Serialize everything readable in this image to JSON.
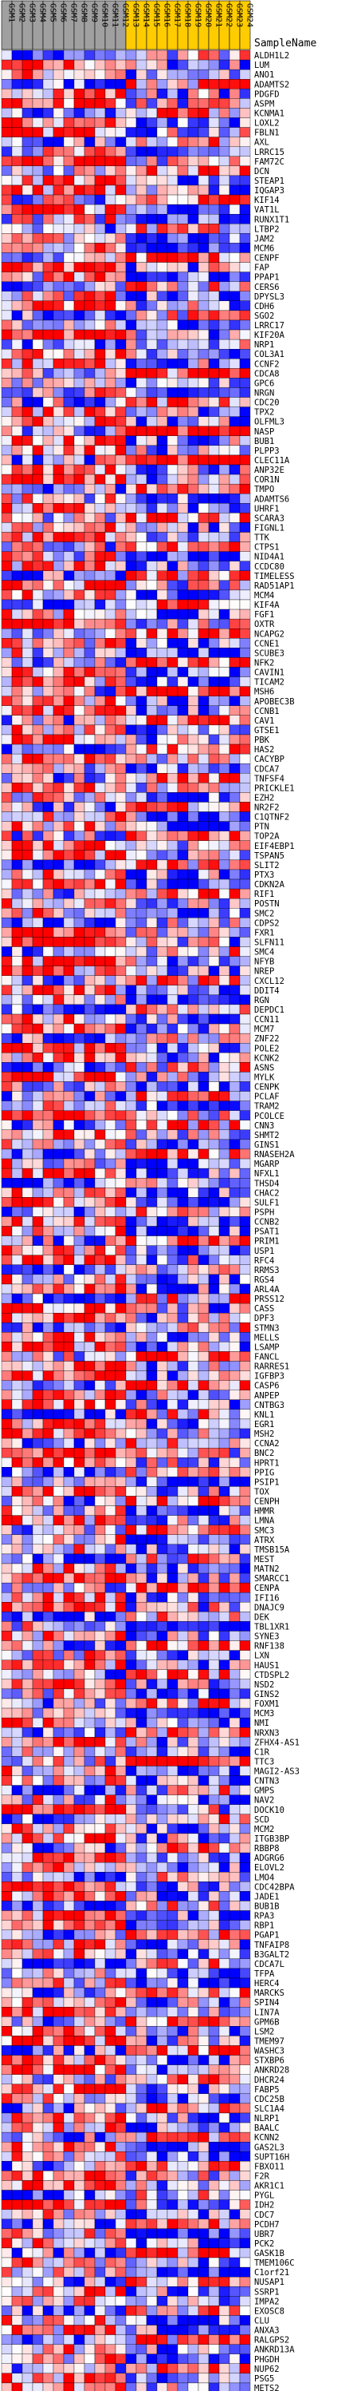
{
  "chart_data": {
    "type": "heatmap",
    "header": "SampleName",
    "columns": [
      "GSM1",
      "GSM2",
      "GSM3",
      "GSM4",
      "GSM5",
      "GSM6",
      "GSM7",
      "GSM8",
      "GSM9",
      "GSM10",
      "GSM11",
      "GSM12",
      "GSM13",
      "GSM14",
      "GSM15",
      "GSM16",
      "GSM17",
      "GSM18",
      "GSM19",
      "GSM20",
      "GSM21",
      "GSM22",
      "GSM23",
      "GSM24"
    ],
    "column_groups": [
      {
        "name": "",
        "color": "#a0a0a0",
        "count": 12
      },
      {
        "name": "",
        "color": "#ffcc00",
        "count": 12
      }
    ],
    "rows": [
      "ALDH1L2",
      "LUM",
      "ANO1",
      "ADAMTS2",
      "PDGFD",
      "ASPM",
      "KCNMA1",
      "LOXL2",
      "FBLN1",
      "AXL",
      "LRRC15",
      "FAM72C",
      "DCN",
      "STEAP1",
      "IQGAP3",
      "KIF14",
      "VAT1L",
      "RUNX1T1",
      "LTBP2",
      "JAM2",
      "MCM6",
      "CENPF",
      "FAP",
      "PPAP1",
      "CERS6",
      "DPYSL3",
      "CDH6",
      "SGO2",
      "LRRC17",
      "KIF20A",
      "NRP1",
      "COL3A1",
      "CCNF2",
      "CDCA8",
      "GPC6",
      "NRGN",
      "CDC20",
      "TPX2",
      "OLFML3",
      "NASP",
      "BUB1",
      "PLPP3",
      "CLEC11A",
      "ANP32E",
      "COR1N",
      "TMPO",
      "ADAMTS6",
      "UHRF1",
      "SCARA3",
      "FIGNL1",
      "TTK",
      "CTPS1",
      "NID4A1",
      "CCDC80",
      "TIMELESS",
      "RAD51AP1",
      "MCM4",
      "KIF4A",
      "FGF1",
      "OXTR",
      "NCAPG2",
      "CCNE1",
      "SCUBE3",
      "NFK2",
      "CAVIN1",
      "TICAM2",
      "MSH6",
      "APOBEC3B",
      "CCNB1",
      "CAV1",
      "GTSE1",
      "PBK",
      "HAS2",
      "CACYBP",
      "CDCA7",
      "TNFSF4",
      "PRICKLE1",
      "EZH2",
      "NR2F2",
      "C1QTNF2",
      "PTN",
      "TOP2A",
      "EIF4EBP1",
      "TSPAN5",
      "SLIT2",
      "PTX3",
      "CDKN2A",
      "RIF1",
      "POSTN",
      "SMC2",
      "CDPS2",
      "FXR1",
      "SLFN11",
      "SMC4",
      "NFYB",
      "NREP",
      "CXCL12",
      "DDIT4",
      "RGN",
      "DEPDC1",
      "CCN11",
      "MCM7",
      "ZNF22",
      "POLE2",
      "KCNK2",
      "ASNS",
      "MYLK",
      "CENPK",
      "PCLAF",
      "TRAM2",
      "PCOLCE",
      "CNN3",
      "SHMT2",
      "GINS1",
      "RNASEH2A",
      "MGARP",
      "NFXL1",
      "THSD4",
      "CHAC2",
      "SULF1",
      "PSPH",
      "CCNB2",
      "PSAT1",
      "PRIM1",
      "USP1",
      "RFC4",
      "RRMS3",
      "RGS4",
      "ARL4A",
      "PRSS12",
      "CASS",
      "DPF3",
      "STMN3",
      "MELLS",
      "LSAMP",
      "FANCL",
      "RARRES1",
      "IGFBP3",
      "CASP6",
      "ANPEP",
      "CNTBG3",
      "KNL1",
      "EGR1",
      "MSH2",
      "CCNA2",
      "BNC2",
      "HPRT1",
      "PPIG",
      "PSIP1",
      "TOX",
      "CENPH",
      "HMMR",
      "LMNA",
      "SMC3",
      "ATRX",
      "TMSB15A",
      "MEST",
      "MATN2",
      "SMARCC1",
      "CENPA",
      "IFI16",
      "DNAJC9",
      "DEK",
      "TBL1XR1",
      "SYNE3",
      "RNF138",
      "LXN",
      "HAUS1",
      "CTDSPL2",
      "NSD2",
      "GINS2",
      "FOXM1",
      "MCM3",
      "NMI",
      "NRXN3",
      "ZFHX4-AS1",
      "C1R",
      "TTC3",
      "MAGI2-AS3",
      "CNTN3",
      "GMPS",
      "NAV2",
      "DOCK10",
      "SCD",
      "MCM2",
      "ITGB3BP",
      "RBBP8",
      "ADGRG6",
      "ELOVL2",
      "LMO4",
      "CDC42BPA",
      "JADE1",
      "BUB1B",
      "RPA3",
      "RBP1",
      "PGAP1",
      "TNFAIP8",
      "B3GALT2",
      "CDCA7L",
      "TFPA",
      "HERC4",
      "MARCKS",
      "SPIN4",
      "LIN7A",
      "GPM6B",
      "LSM2",
      "TMEM97",
      "WASHC3",
      "STXBP6",
      "ANKRD28",
      "DHCR24",
      "FABP5",
      "CDC25B",
      "SLC1A4",
      "NLRP1",
      "BAALC",
      "KCNN2",
      "GAS2L3",
      "SUPT16H",
      "FBXO11",
      "F2R",
      "AKR1C1",
      "PYGL",
      "IDH2",
      "CDC7",
      "PCDH7",
      "UBR7",
      "PCK2",
      "GASK1B",
      "TMEM106C",
      "C1orf21",
      "NUSAP1",
      "SSRP1",
      "IMPA2",
      "EXOSC8",
      "CLU",
      "ANXA3",
      "RALGPS2",
      "ANKRD13A",
      "PHGDH",
      "NUP62",
      "PSG5",
      "METS2"
    ],
    "scale": {
      "low": "#0000ff",
      "mid": "#ffffff",
      "high": "#ff0000"
    },
    "value_range": [
      -3,
      3
    ],
    "grid": true
  }
}
